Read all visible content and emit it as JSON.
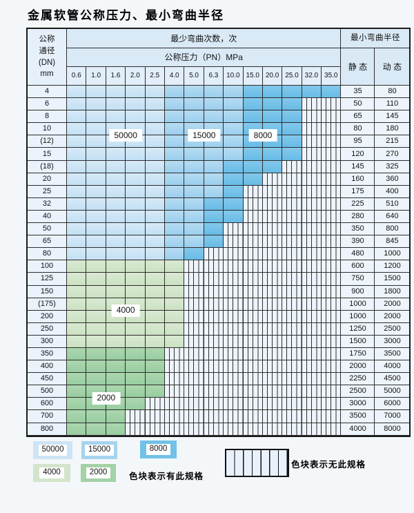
{
  "chart_data": {
    "type": "table",
    "title": "金属软管公称压力、最小弯曲半径",
    "header": {
      "dn_lines": [
        "公称",
        "通径",
        "(DN)",
        "mm"
      ],
      "cycles_header": "最少弯曲次数，次",
      "pressure_header": "公称压力（PN）MPa",
      "radius_header": "最小弯曲半径",
      "static_label": "静 态",
      "dynamic_label": "动 态"
    },
    "pressure_columns": [
      "0.6",
      "1.0",
      "1.6",
      "2.0",
      "2.5",
      "4.0",
      "5.0",
      "6.3",
      "10.0",
      "15.0",
      "20.0",
      "25.0",
      "32.0",
      "35.0"
    ],
    "rows": [
      {
        "dn": "4",
        "static": "35",
        "dynamic": "80",
        "band": "blue",
        "last": 13,
        "med": 5,
        "dark": 9,
        "max_pn": "35.0"
      },
      {
        "dn": "6",
        "static": "50",
        "dynamic": "110",
        "band": "blue",
        "last": 11,
        "med": 5,
        "dark": 9,
        "max_pn": "25.0"
      },
      {
        "dn": "8",
        "static": "65",
        "dynamic": "145",
        "band": "blue",
        "last": 11,
        "med": 5,
        "dark": 9,
        "max_pn": "25.0"
      },
      {
        "dn": "10",
        "static": "80",
        "dynamic": "180",
        "band": "blue",
        "last": 11,
        "med": 5,
        "dark": 9,
        "max_pn": "25.0"
      },
      {
        "dn": "(12)",
        "static": "95",
        "dynamic": "215",
        "band": "blue",
        "last": 11,
        "med": 5,
        "dark": 9,
        "max_pn": "25.0"
      },
      {
        "dn": "15",
        "static": "120",
        "dynamic": "270",
        "band": "blue",
        "last": 11,
        "med": 5,
        "dark": 9,
        "max_pn": "25.0"
      },
      {
        "dn": "(18)",
        "static": "145",
        "dynamic": "325",
        "band": "blue",
        "last": 10,
        "med": 5,
        "dark": 8,
        "max_pn": "20.0"
      },
      {
        "dn": "20",
        "static": "160",
        "dynamic": "360",
        "band": "blue",
        "last": 9,
        "med": 5,
        "dark": 8,
        "max_pn": "15.0"
      },
      {
        "dn": "25",
        "static": "175",
        "dynamic": "400",
        "band": "blue",
        "last": 8,
        "med": 5,
        "dark": 8,
        "max_pn": "10.0"
      },
      {
        "dn": "32",
        "static": "225",
        "dynamic": "510",
        "band": "blue",
        "last": 8,
        "med": 5,
        "dark": 7,
        "max_pn": "10.0"
      },
      {
        "dn": "40",
        "static": "280",
        "dynamic": "640",
        "band": "blue",
        "last": 8,
        "med": 5,
        "dark": 7,
        "max_pn": "10.0"
      },
      {
        "dn": "50",
        "static": "350",
        "dynamic": "800",
        "band": "blue",
        "last": 7,
        "med": 5,
        "dark": 7,
        "max_pn": "6.3"
      },
      {
        "dn": "65",
        "static": "390",
        "dynamic": "845",
        "band": "blue",
        "last": 7,
        "med": 5,
        "dark": 7,
        "max_pn": "6.3"
      },
      {
        "dn": "80",
        "static": "480",
        "dynamic": "1000",
        "band": "blue",
        "last": 6,
        "med": 5,
        "dark": 6,
        "max_pn": "5.0"
      },
      {
        "dn": "100",
        "static": "600",
        "dynamic": "1200",
        "band": "green-light",
        "last": 5,
        "max_pn": "4.0"
      },
      {
        "dn": "125",
        "static": "750",
        "dynamic": "1500",
        "band": "green-light",
        "last": 5,
        "max_pn": "4.0"
      },
      {
        "dn": "150",
        "static": "900",
        "dynamic": "1800",
        "band": "green-light",
        "last": 5,
        "max_pn": "4.0"
      },
      {
        "dn": "(175)",
        "static": "1000",
        "dynamic": "2000",
        "band": "green-light",
        "last": 5,
        "max_pn": "4.0"
      },
      {
        "dn": "200",
        "static": "1000",
        "dynamic": "2000",
        "band": "green-light",
        "last": 5,
        "max_pn": "4.0"
      },
      {
        "dn": "250",
        "static": "1250",
        "dynamic": "2500",
        "band": "green-light",
        "last": 5,
        "max_pn": "4.0"
      },
      {
        "dn": "300",
        "static": "1500",
        "dynamic": "3000",
        "band": "green-light",
        "last": 5,
        "max_pn": "4.0"
      },
      {
        "dn": "350",
        "static": "1750",
        "dynamic": "3500",
        "band": "green-dark",
        "last": 4,
        "max_pn": "2.5"
      },
      {
        "dn": "400",
        "static": "2000",
        "dynamic": "4000",
        "band": "green-dark",
        "last": 4,
        "max_pn": "2.5"
      },
      {
        "dn": "450",
        "static": "2250",
        "dynamic": "4500",
        "band": "green-dark",
        "last": 4,
        "max_pn": "2.5"
      },
      {
        "dn": "500",
        "static": "2500",
        "dynamic": "5000",
        "band": "green-dark",
        "last": 4,
        "max_pn": "2.5"
      },
      {
        "dn": "600",
        "static": "3000",
        "dynamic": "6000",
        "band": "green-dark",
        "last": 3,
        "max_pn": "2.0"
      },
      {
        "dn": "700",
        "static": "3500",
        "dynamic": "7000",
        "band": "green-dark",
        "last": 2,
        "max_pn": "1.6"
      },
      {
        "dn": "800",
        "static": "4000",
        "dynamic": "8000",
        "band": "green-dark",
        "last": 2,
        "max_pn": "1.6"
      }
    ],
    "overlay_labels": [
      {
        "text": "50000",
        "col_start": 2,
        "col_end": 3,
        "row_start": 3,
        "row_end": 4
      },
      {
        "text": "15000",
        "col_start": 6,
        "col_end": 7,
        "row_start": 3,
        "row_end": 4
      },
      {
        "text": "8000",
        "col_start": 9,
        "col_end": 10,
        "row_start": 3,
        "row_end": 4
      },
      {
        "text": "4000",
        "col_start": 2,
        "col_end": 3,
        "row_start": 17,
        "row_end": 18
      },
      {
        "text": "2000",
        "col_start": 1,
        "col_end": 2,
        "row_start": 24,
        "row_end": 25
      }
    ],
    "legend": {
      "items": [
        {
          "label": "50000",
          "color_key": "blue_light"
        },
        {
          "label": "15000",
          "color_key": "blue_medium"
        },
        {
          "label": "8000",
          "color_key": "blue_dark"
        },
        {
          "label": "4000",
          "color_key": "green_light"
        },
        {
          "label": "2000",
          "color_key": "green_dark"
        }
      ],
      "has_spec_note": "色块表示有此规格",
      "no_spec_note": "色块表示无此规格"
    },
    "colors": {
      "blue_light": "#cde4f5",
      "blue_medium": "#a6d4ee",
      "blue_dark": "#72c1e8",
      "green_light": "#d2e5ca",
      "green_dark": "#a3d2a6",
      "header_bg": "#d9e9f6",
      "label_cell_bg": "#eaf2fb",
      "grid_line": "#2d2d2d"
    }
  }
}
